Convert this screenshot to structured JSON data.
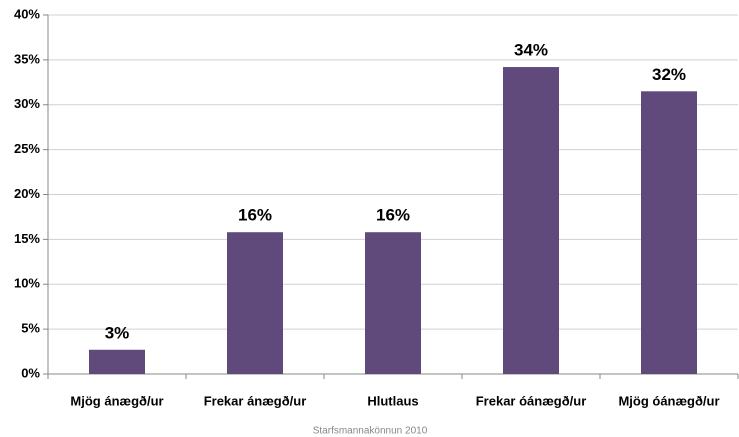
{
  "chart_data": {
    "type": "bar",
    "categories": [
      "Mjög ánægð/ur",
      "Frekar ánægð/ur",
      "Hlutlaus",
      "Frekar óánægð/ur",
      "Mjög óánægð/ur"
    ],
    "values": [
      2.7,
      15.8,
      15.8,
      34.2,
      31.5
    ],
    "value_labels": [
      "3%",
      "16%",
      "16%",
      "34%",
      "32%"
    ],
    "color": "#604a7b",
    "ylim": [
      0,
      40
    ],
    "yticks": [
      {
        "value": 0,
        "label": "0%"
      },
      {
        "value": 5,
        "label": "5%"
      },
      {
        "value": 10,
        "label": "10%"
      },
      {
        "value": 15,
        "label": "15%"
      },
      {
        "value": 20,
        "label": "20%"
      },
      {
        "value": 25,
        "label": "25%"
      },
      {
        "value": 30,
        "label": "30%"
      },
      {
        "value": 35,
        "label": "35%"
      },
      {
        "value": 40,
        "label": "40%"
      }
    ],
    "grid": true,
    "source": "Starfsmannakönnun 2010"
  }
}
